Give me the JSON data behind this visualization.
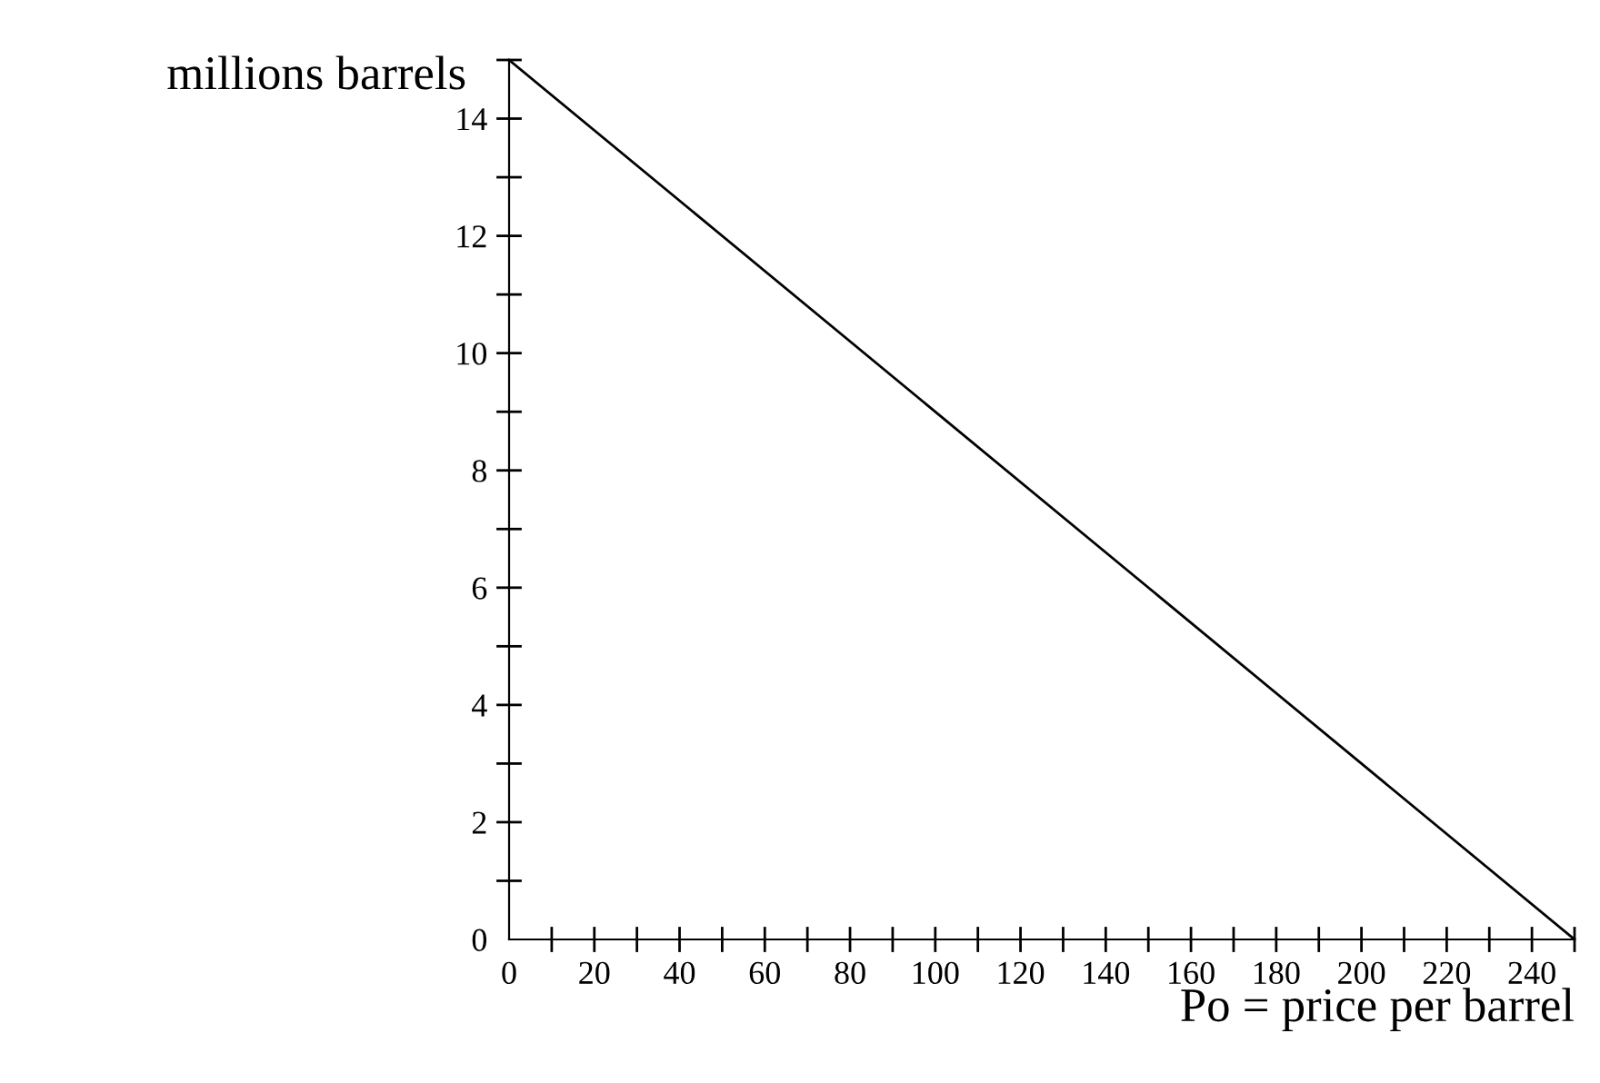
{
  "chart_data": {
    "type": "line",
    "xlabel": "Po = price per barrel",
    "ylabel": "millions barrels",
    "x": [
      0,
      250
    ],
    "series": [
      {
        "color": "#000000",
        "values": [
          15,
          0
        ]
      }
    ],
    "xlim": [
      0,
      250
    ],
    "ylim": [
      0,
      15
    ],
    "xticks": [
      0,
      {
        "value": 10,
        "label": null
      },
      20,
      {
        "value": 30,
        "label": null
      },
      40,
      {
        "value": 50,
        "label": null
      },
      60,
      {
        "value": 70,
        "label": null
      },
      80,
      {
        "value": 90,
        "label": null
      },
      100,
      {
        "value": 110,
        "label": null
      },
      120,
      {
        "value": 130,
        "label": null
      },
      140,
      {
        "value": 150,
        "label": null
      },
      160,
      {
        "value": 170,
        "label": null
      },
      180,
      {
        "value": 190,
        "label": null
      },
      200,
      {
        "value": 210,
        "label": null
      },
      220,
      {
        "value": 230,
        "label": null
      },
      240,
      {
        "value": 250,
        "label": null
      }
    ],
    "yticks": [
      0,
      {
        "value": 1,
        "label": null
      },
      2,
      {
        "value": 3,
        "label": null
      },
      4,
      {
        "value": 5,
        "label": null
      },
      6,
      {
        "value": 7,
        "label": null
      },
      8,
      {
        "value": 9,
        "label": null
      },
      10,
      {
        "value": 11,
        "label": null
      },
      12,
      {
        "value": 13,
        "label": null
      },
      14,
      {
        "value": 15,
        "label": null
      }
    ],
    "grid": false,
    "legend": false,
    "marker": "none",
    "line_style": "solid"
  }
}
